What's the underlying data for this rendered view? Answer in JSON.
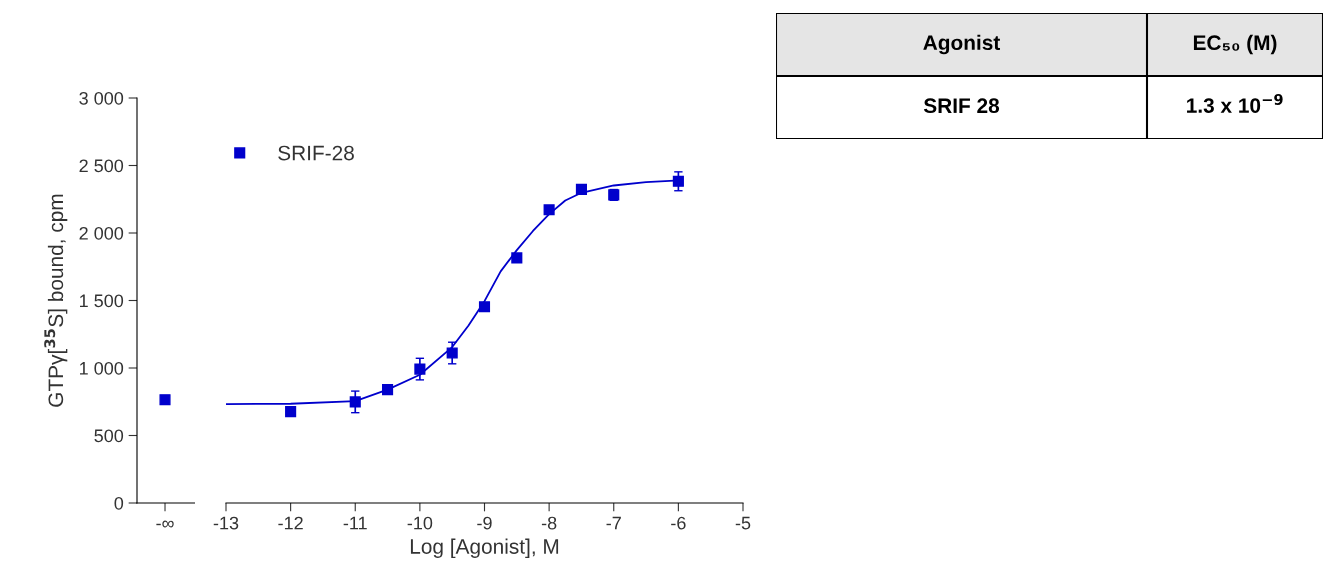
{
  "chart_data": [
    {
      "type": "scatter",
      "categories": [
        "-∞"
      ],
      "ylabel": "GTPγ[$^{35}$S] bound, cpm",
      "ylim": [
        0,
        3000
      ],
      "yticks": [
        {
          "value": 0,
          "label": "0"
        },
        {
          "value": 500,
          "label": "500"
        },
        {
          "value": 1000,
          "label": "1 000"
        },
        {
          "value": 1500,
          "label": "1 500"
        },
        {
          "value": 2000,
          "label": "2 000"
        },
        {
          "value": 2500,
          "label": "2 500"
        },
        {
          "value": 3000,
          "label": "3 000"
        }
      ],
      "tick_labels": true,
      "marker": "square",
      "series": [
        {
          "color": "#0000cc",
          "values": [
            765
          ]
        }
      ]
    },
    {
      "type": "scatter",
      "xlabel": "Log [Agonist], M",
      "xlim": [
        -13,
        -5
      ],
      "xticks": [
        -13,
        -12,
        -11,
        -10,
        -9,
        -8,
        -7,
        -6,
        -5
      ],
      "ylim": [
        0,
        3000
      ],
      "tick_labels": "x",
      "legend": "top left",
      "marker": "square",
      "series": [
        {
          "name": "SRIF-28",
          "color": "#0000cc",
          "x": [
            -12,
            -11,
            -10.5,
            -10,
            -9.5,
            -9,
            -8.5,
            -8,
            -7.5,
            -7,
            -6
          ],
          "values": [
            677,
            749,
            840,
            992,
            1111,
            1454,
            1816,
            2172,
            2323,
            2282,
            2383
          ],
          "errors": [
            null,
            80,
            null,
            80,
            80,
            null,
            null,
            null,
            null,
            40,
            70
          ]
        },
        {
          "type": "line",
          "marker": "none",
          "color": "#0000cc",
          "x": [
            -13,
            -12,
            -11,
            -10.5,
            -10,
            -9.5,
            -9.25,
            -9,
            -8.75,
            -8.5,
            -8.25,
            -8,
            -7.75,
            -7.5,
            -7,
            -6.5,
            -6
          ],
          "values": [
            733,
            735,
            755,
            840,
            950,
            1155,
            1313,
            1495,
            1716,
            1873,
            2015,
            2140,
            2241,
            2298,
            2352,
            2377,
            2389
          ]
        }
      ]
    },
    {
      "type": "other",
      "annotations": [
        "Agonist",
        "EC₅₀ (M)",
        "SRIF 28",
        "1.3 x 10$^{−9}$"
      ]
    }
  ]
}
